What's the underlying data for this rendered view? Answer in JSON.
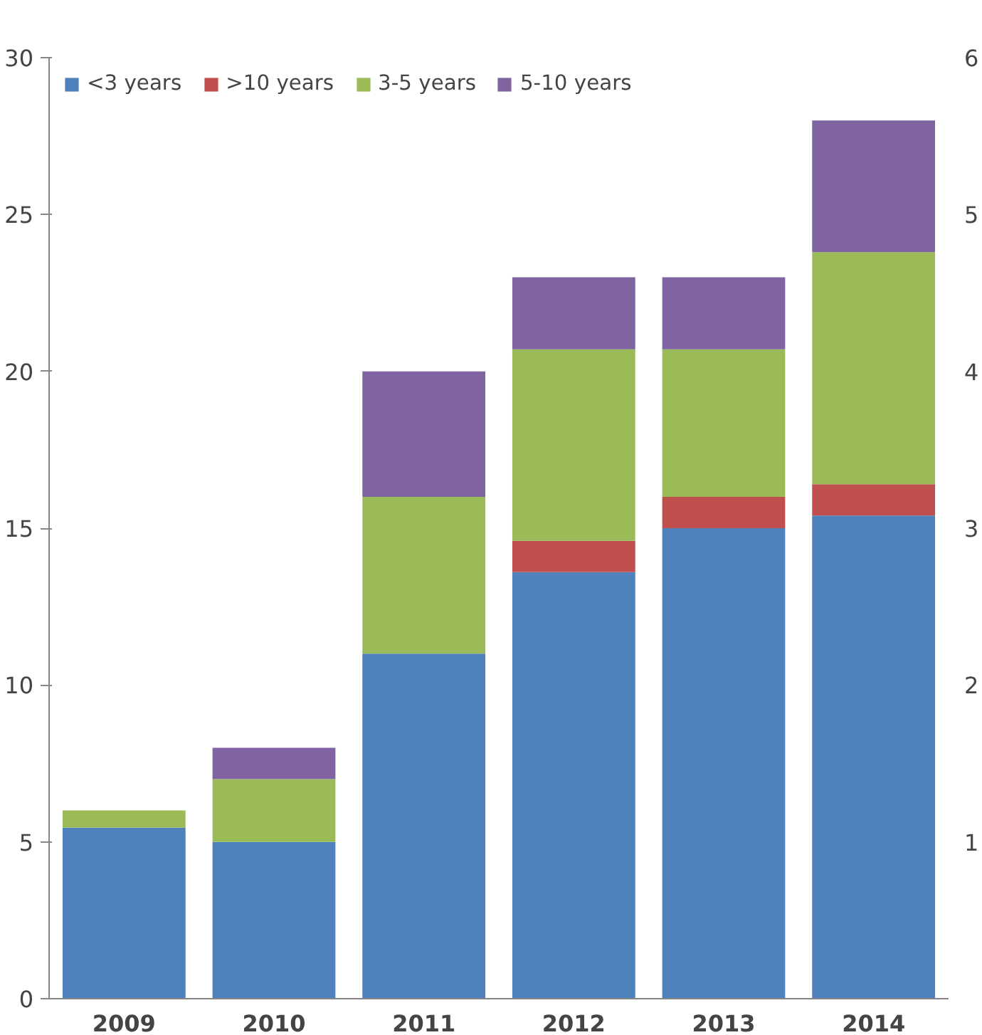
{
  "chart_data": {
    "type": "bar",
    "stacked": true,
    "categories": [
      "2009",
      "2010",
      "2011",
      "2012",
      "2013",
      "2014"
    ],
    "series": [
      {
        "name": "<3 years",
        "color": "#4f81bd",
        "values": [
          5.45,
          5,
          11,
          13.6,
          15,
          15.4
        ]
      },
      {
        "name": ">10 years",
        "color": "#c0504d",
        "values": [
          0,
          0,
          0,
          1,
          1,
          1
        ]
      },
      {
        "name": "3-5 years",
        "color": "#9bbb59",
        "values": [
          0.55,
          2,
          5,
          6.1,
          4.7,
          7.4
        ]
      },
      {
        "name": "5-10 years",
        "color": "#8064a2",
        "values": [
          0,
          1,
          4,
          2.3,
          2.3,
          4.2
        ]
      }
    ],
    "ylim": [
      0,
      30
    ],
    "yticks": [
      0,
      5,
      10,
      15,
      20,
      25,
      30
    ],
    "y2lim": [
      0,
      6
    ],
    "y2ticks": [
      1,
      2,
      3,
      4,
      5,
      6
    ],
    "grid": false,
    "legend": "top left"
  }
}
